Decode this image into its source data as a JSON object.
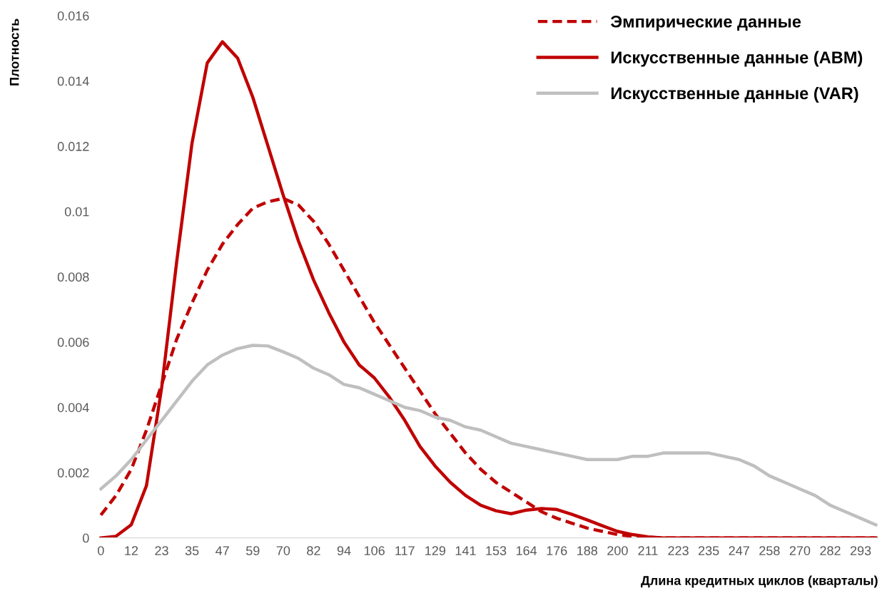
{
  "chart_data": {
    "type": "line",
    "xlabel": "Длина кредитных циклов (кварталы)",
    "ylabel": "Плотность",
    "categories": [
      "0",
      null,
      "12",
      null,
      "23",
      null,
      "35",
      null,
      "47",
      null,
      "59",
      null,
      "70",
      null,
      "82",
      null,
      "94",
      null,
      "106",
      null,
      "117",
      null,
      "129",
      null,
      "141",
      null,
      "153",
      null,
      "164",
      null,
      "176",
      null,
      "188",
      null,
      "200",
      null,
      "211",
      null,
      "223",
      null,
      "235",
      null,
      "247",
      null,
      "258",
      null,
      "270",
      null,
      "282",
      null,
      "293",
      null
    ],
    "series": [
      {
        "name": "Эмпирические данные",
        "color": "#c00000",
        "line_style": "dashed",
        "values": [
          0.0007,
          0.0013,
          0.0021,
          0.0033,
          0.0047,
          0.0061,
          0.0072,
          0.0082,
          0.009,
          0.0096,
          0.0101,
          0.0103,
          0.0104,
          0.0102,
          0.0097,
          0.009,
          0.0082,
          0.0074,
          0.0066,
          0.0059,
          0.0052,
          0.0045,
          0.0038,
          0.0032,
          0.0026,
          0.0021,
          0.0017,
          0.0014,
          0.0011,
          0.0008,
          0.0006,
          0.00045,
          0.0003,
          0.0002,
          0.0001,
          5e-05,
          2e-05,
          0,
          0,
          0,
          0,
          0,
          0,
          0,
          0,
          0,
          0,
          0,
          0,
          0,
          0,
          0
        ]
      },
      {
        "name": "Искусственные данные (ABM)",
        "color": "#c00000",
        "line_style": "solid",
        "values": [
          0,
          5e-05,
          0.0004,
          0.0016,
          0.0046,
          0.0085,
          0.0121,
          0.01455,
          0.0152,
          0.0147,
          0.0135,
          0.012,
          0.0105,
          0.0091,
          0.0079,
          0.0069,
          0.006,
          0.0053,
          0.0049,
          0.0043,
          0.0036,
          0.0028,
          0.0022,
          0.0017,
          0.0013,
          0.001,
          0.00083,
          0.00074,
          0.00085,
          0.0009,
          0.00087,
          0.00072,
          0.00055,
          0.00037,
          0.0002,
          0.0001,
          3e-05,
          0,
          0,
          0,
          0,
          0,
          0,
          0,
          0,
          0,
          0,
          0,
          0,
          0,
          0,
          0
        ]
      },
      {
        "name": "Искусственные данные (VAR)",
        "color": "#bfbfbf",
        "line_style": "solid",
        "values": [
          0.0015,
          0.0019,
          0.0024,
          0.003,
          0.0036,
          0.0042,
          0.0048,
          0.0053,
          0.0056,
          0.0058,
          0.0059,
          0.00588,
          0.0057,
          0.0055,
          0.0052,
          0.005,
          0.0047,
          0.0046,
          0.0044,
          0.0042,
          0.004,
          0.0039,
          0.0037,
          0.0036,
          0.0034,
          0.0033,
          0.0031,
          0.0029,
          0.0028,
          0.0027,
          0.0026,
          0.0025,
          0.0024,
          0.0024,
          0.0024,
          0.0025,
          0.0025,
          0.0026,
          0.0026,
          0.0026,
          0.0026,
          0.0025,
          0.0024,
          0.0022,
          0.0019,
          0.0017,
          0.0015,
          0.0013,
          0.001,
          0.0008,
          0.0006,
          0.0004
        ]
      }
    ],
    "ylim": [
      0,
      0.016
    ],
    "yticks": [
      0,
      0.002,
      0.004,
      0.006,
      0.008,
      0.01,
      0.012,
      0.014,
      0.016
    ],
    "legend": "top right"
  }
}
